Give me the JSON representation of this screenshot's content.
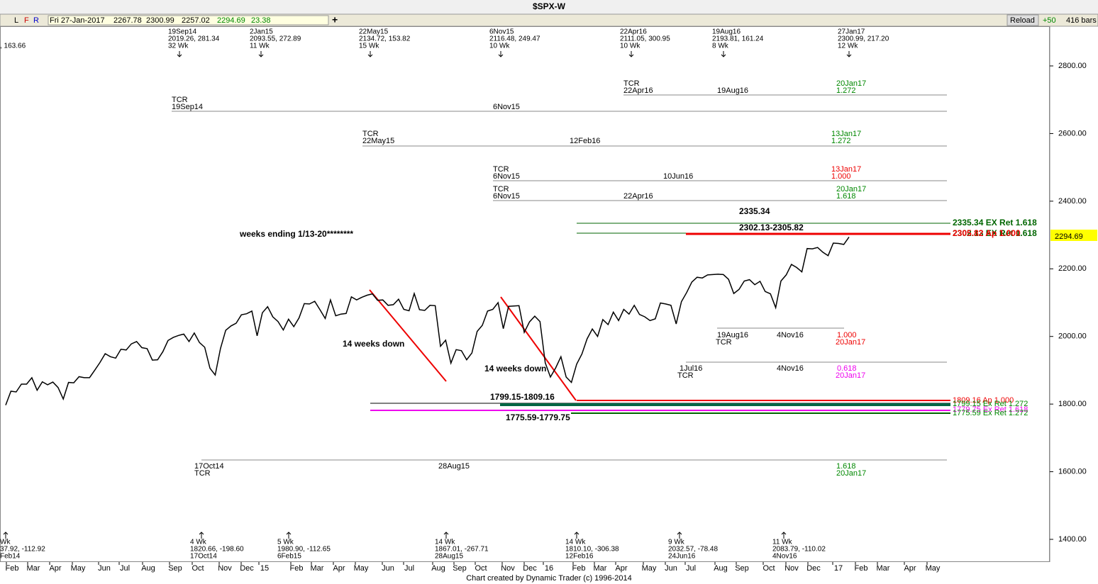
{
  "toolbar": {
    "flags": [
      "L",
      "F",
      "R"
    ],
    "date": "Fri 27-Jan-2017",
    "open": "2267.78",
    "high": "2300.99",
    "low": "2257.02",
    "close": "2294.69",
    "change": "23.38",
    "add": "+",
    "reload": "Reload",
    "offset": "+50",
    "bars": "416 bars"
  },
  "title": "$SPX-W",
  "yaxis": {
    "ticks": [
      {
        "value": 1400,
        "label": "1400.00"
      },
      {
        "value": 1600,
        "label": "1600.00"
      },
      {
        "value": 1800,
        "label": "1800.00"
      },
      {
        "value": 2000,
        "label": "2000.00"
      },
      {
        "value": 2200,
        "label": "2200.00"
      },
      {
        "value": 2400,
        "label": "2400.00"
      },
      {
        "value": 2600,
        "label": "2600.00"
      },
      {
        "value": 2800,
        "label": "2800.00"
      }
    ],
    "last_price": {
      "value": 2294.69,
      "label": "2294.69"
    }
  },
  "xaxis": [
    "Feb",
    "Mar",
    "Apr",
    "May",
    "Jun",
    "Jul",
    "Aug",
    "Sep",
    "Oct",
    "Nov",
    "Dec",
    "15",
    "Feb",
    "Mar",
    "Apr",
    "May",
    "Jun",
    "Jul",
    "Aug",
    "Sep",
    "Oct",
    "Nov",
    "Dec",
    "16",
    "Feb",
    "Mar",
    "Apr",
    "May",
    "Jun",
    "Jul",
    "Aug",
    "Sep",
    "Oct",
    "Nov",
    "Dec",
    "17",
    "Feb",
    "Mar",
    "Apr",
    "May"
  ],
  "closes": [
    1797,
    1838,
    1836,
    1859,
    1859,
    1878,
    1841,
    1866,
    1857,
    1865,
    1849,
    1815,
    1864,
    1863,
    1881,
    1878,
    1878,
    1900,
    1923,
    1949,
    1940,
    1936,
    1962,
    1960,
    1978,
    1985,
    1967,
    1964,
    1930,
    1931,
    1955,
    1988,
    1997,
    2003,
    2007,
    1985,
    2010,
    1982,
    1968,
    1906,
    1886,
    1964,
    2018,
    2031,
    2039,
    2064,
    2067,
    2075,
    2002,
    2070,
    2088,
    2058,
    2044,
    2019,
    2051,
    2029,
    2055,
    2097,
    2096,
    2104,
    2079,
    2053,
    2108,
    2061,
    2066,
    2068,
    2117,
    2108,
    2116,
    2122,
    2126,
    2107,
    2108,
    2092,
    2094,
    2110,
    2080,
    2076,
    2127,
    2079,
    2077,
    2092,
    2091,
    1971,
    1989,
    1921,
    1961,
    1958,
    1931,
    1951,
    2015,
    2033,
    2075,
    2080,
    2100,
    2023,
    2089,
    2090,
    2091,
    2012,
    2043,
    2060,
    2044,
    1922,
    1880,
    1907,
    1940,
    1880,
    1864,
    1918,
    1948,
    1993,
    2022,
    2000,
    2050,
    2035,
    2072,
    2047,
    2080,
    2066,
    2092,
    2065,
    2058,
    2047,
    2052,
    2099,
    2096,
    2092,
    2037,
    2103,
    2130,
    2161,
    2175,
    2173,
    2182,
    2183,
    2184,
    2183,
    2169,
    2127,
    2139,
    2164,
    2168,
    2153,
    2163,
    2133,
    2126,
    2085,
    2164,
    2182,
    2213,
    2204,
    2191,
    2260,
    2259,
    2263,
    2249,
    2239,
    2276,
    2275,
    2272,
    2294
  ],
  "top_swings": [
    [
      ", 163.66"
    ],
    [
      "19Sep14",
      "2019.26, 281.34",
      "32 Wk"
    ],
    [
      "2Jan15",
      "2093.55, 272.89",
      "11 Wk"
    ],
    [
      "22May15",
      "2134.72, 153.82",
      "15 Wk"
    ],
    [
      "6Nov15",
      "2116.48, 249.47",
      "10 Wk"
    ],
    [
      "22Apr16",
      "2111.05, 300.95",
      "10 Wk"
    ],
    [
      "19Aug16",
      "2193.81, 161.24",
      "8 Wk"
    ],
    [
      "27Jan17",
      "2300.99, 217.20",
      "12 Wk"
    ]
  ],
  "bottom_swings": [
    [
      "Wk",
      "37.92, -112.92",
      "Feb14"
    ],
    [
      "4 Wk",
      "1820.66, -198.60",
      "17Oct14"
    ],
    [
      "5 Wk",
      "1980.90, -112.65",
      "6Feb15"
    ],
    [
      "14 Wk",
      "1867.01, -267.71",
      "28Aug15"
    ],
    [
      "14 Wk",
      "1810.10, -306.38",
      "12Feb16"
    ],
    [
      "9 Wk",
      "2032.57, -78.48",
      "24Jun16"
    ],
    [
      "11 Wk",
      "2083.79, -110.02",
      "4Nov16"
    ]
  ],
  "annotations": [
    "TCR",
    "22Apr16",
    "19Aug16",
    "20Jan17",
    "1.272",
    "TCR",
    "19Sep14",
    "6Nov15",
    "TCR",
    "22May15",
    "12Feb16",
    "13Jan17",
    "1.272",
    "TCR",
    "6Nov15",
    "10Jun16",
    "13Jan17",
    "1.000",
    "TCR",
    "6Nov15",
    "22Apr16",
    "20Jan17",
    "1.618",
    "2335.34",
    "2302.13-2305.82",
    "weeks ending 1/13-20********",
    "2335.34 EX Ret 1.618",
    "2302.13 EX Ret 1.618",
    "2305.82 Ap 1.000",
    "14 weeks down",
    "14 weeks down",
    "19Aug16",
    "TCR",
    "4Nov16",
    "1.000",
    "20Jan17",
    "1Jul16",
    "TCR",
    "4Nov16",
    "0.618",
    "20Jan17",
    "1799.15-1809.16",
    "1775.59-1779.75",
    "1809.16 Ap 1.000",
    "1799.15 Ex Ret 1.272",
    "1779.75 Ex Ret 1.618",
    "1775.59 Ex Ret 1.272",
    "17Oct14",
    "TCR",
    "28Aug15",
    "1.618",
    "20Jan17"
  ],
  "footer": "Chart created by Dynamic Trader  (c)  1996-2014"
}
